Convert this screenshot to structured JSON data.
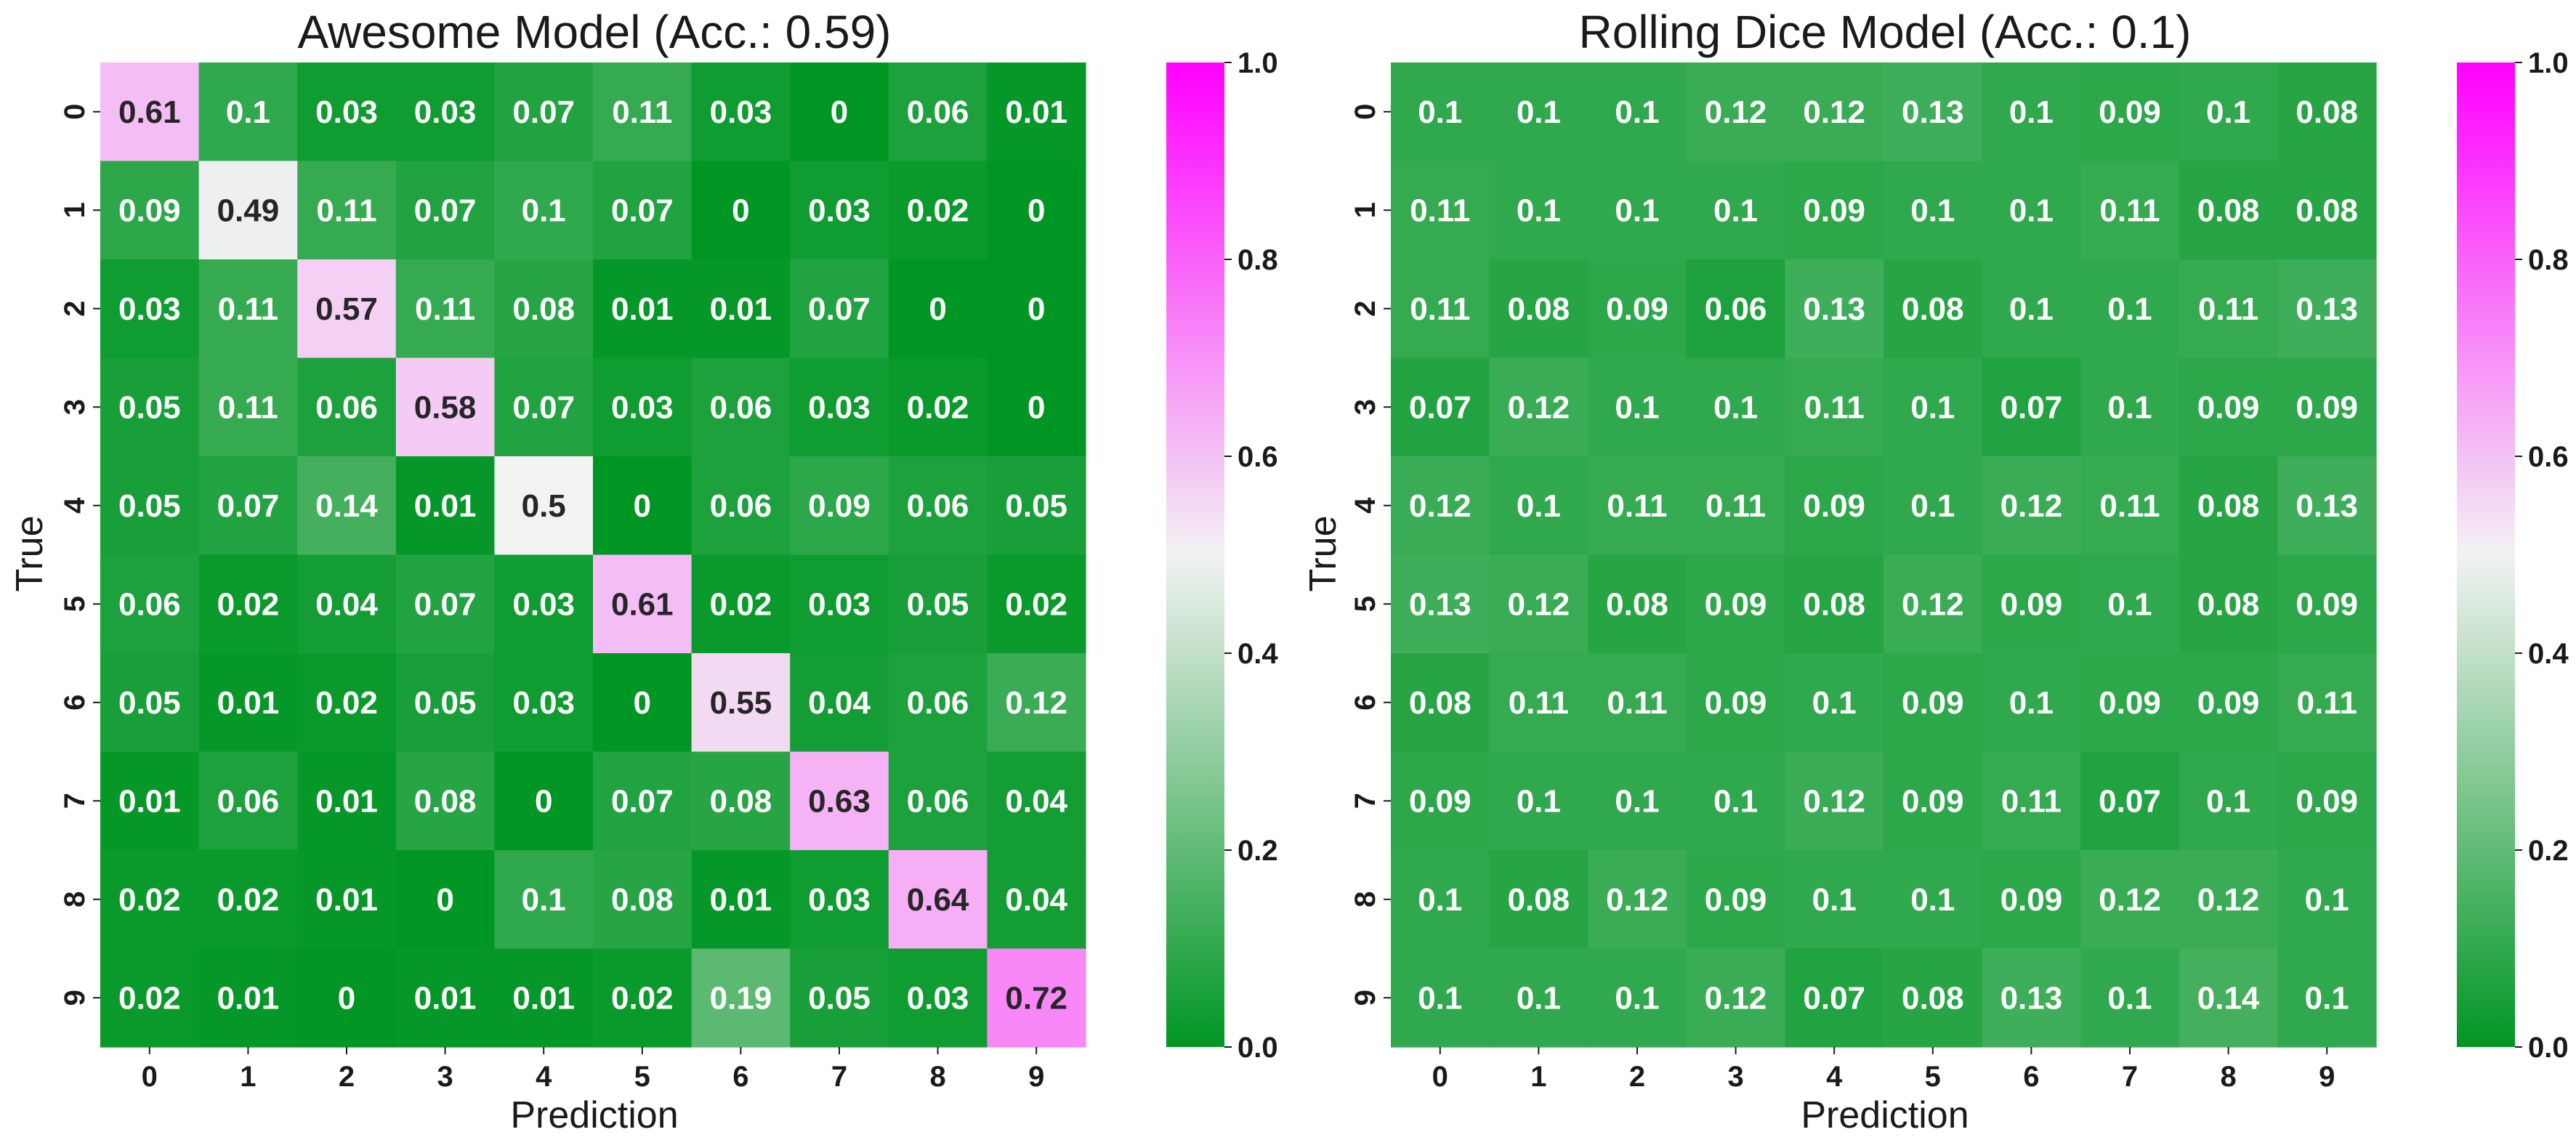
{
  "colors": {
    "low": "#009624",
    "mid": "#f2f2f2",
    "high": "#ff00ff",
    "text_dark": "#262626",
    "text_light": "#ffffff"
  },
  "chart_data": [
    {
      "type": "heatmap",
      "title": "Awesome Model (Acc.: 0.59)",
      "xlabel": "Prediction",
      "ylabel": "True",
      "x_categories": [
        "0",
        "1",
        "2",
        "3",
        "4",
        "5",
        "6",
        "7",
        "8",
        "9"
      ],
      "y_categories": [
        "0",
        "1",
        "2",
        "3",
        "4",
        "5",
        "6",
        "7",
        "8",
        "9"
      ],
      "colorbar": {
        "range": [
          0,
          1
        ],
        "ticks": [
          "0.0",
          "0.2",
          "0.4",
          "0.6",
          "0.8",
          "1.0"
        ]
      },
      "values": [
        [
          0.61,
          0.1,
          0.03,
          0.03,
          0.07,
          0.11,
          0.03,
          0,
          0.06,
          0.01
        ],
        [
          0.09,
          0.49,
          0.11,
          0.07,
          0.1,
          0.07,
          0,
          0.03,
          0.02,
          0
        ],
        [
          0.03,
          0.11,
          0.57,
          0.11,
          0.08,
          0.01,
          0.01,
          0.07,
          0,
          0
        ],
        [
          0.05,
          0.11,
          0.06,
          0.58,
          0.07,
          0.03,
          0.06,
          0.03,
          0.02,
          0
        ],
        [
          0.05,
          0.07,
          0.14,
          0.01,
          0.5,
          0,
          0.06,
          0.09,
          0.06,
          0.05
        ],
        [
          0.06,
          0.02,
          0.04,
          0.07,
          0.03,
          0.61,
          0.02,
          0.03,
          0.05,
          0.02
        ],
        [
          0.05,
          0.01,
          0.02,
          0.05,
          0.03,
          0,
          0.55,
          0.04,
          0.06,
          0.12
        ],
        [
          0.01,
          0.06,
          0.01,
          0.08,
          0,
          0.07,
          0.08,
          0.63,
          0.06,
          0.04
        ],
        [
          0.02,
          0.02,
          0.01,
          0,
          0.1,
          0.08,
          0.01,
          0.03,
          0.64,
          0.04
        ],
        [
          0.02,
          0.01,
          0,
          0.01,
          0.01,
          0.02,
          0.19,
          0.05,
          0.03,
          0.72
        ]
      ]
    },
    {
      "type": "heatmap",
      "title": "Rolling Dice Model (Acc.: 0.1)",
      "xlabel": "Prediction",
      "ylabel": "True",
      "x_categories": [
        "0",
        "1",
        "2",
        "3",
        "4",
        "5",
        "6",
        "7",
        "8",
        "9"
      ],
      "y_categories": [
        "0",
        "1",
        "2",
        "3",
        "4",
        "5",
        "6",
        "7",
        "8",
        "9"
      ],
      "colorbar": {
        "range": [
          0,
          1
        ],
        "ticks": [
          "0.0",
          "0.2",
          "0.4",
          "0.6",
          "0.8",
          "1.0"
        ]
      },
      "values": [
        [
          0.1,
          0.1,
          0.1,
          0.12,
          0.12,
          0.13,
          0.1,
          0.09,
          0.1,
          0.08
        ],
        [
          0.11,
          0.1,
          0.1,
          0.1,
          0.09,
          0.1,
          0.1,
          0.11,
          0.08,
          0.08
        ],
        [
          0.11,
          0.08,
          0.09,
          0.06,
          0.13,
          0.08,
          0.1,
          0.1,
          0.11,
          0.13
        ],
        [
          0.07,
          0.12,
          0.1,
          0.1,
          0.11,
          0.1,
          0.07,
          0.1,
          0.09,
          0.09
        ],
        [
          0.12,
          0.1,
          0.11,
          0.11,
          0.09,
          0.1,
          0.12,
          0.11,
          0.08,
          0.13
        ],
        [
          0.13,
          0.12,
          0.08,
          0.09,
          0.08,
          0.12,
          0.09,
          0.1,
          0.08,
          0.09
        ],
        [
          0.08,
          0.11,
          0.11,
          0.09,
          0.1,
          0.09,
          0.1,
          0.09,
          0.09,
          0.11
        ],
        [
          0.09,
          0.1,
          0.1,
          0.1,
          0.12,
          0.09,
          0.11,
          0.07,
          0.1,
          0.09
        ],
        [
          0.1,
          0.08,
          0.12,
          0.09,
          0.1,
          0.1,
          0.09,
          0.12,
          0.12,
          0.1
        ],
        [
          0.1,
          0.1,
          0.1,
          0.12,
          0.07,
          0.08,
          0.13,
          0.1,
          0.14,
          0.1
        ]
      ]
    }
  ]
}
